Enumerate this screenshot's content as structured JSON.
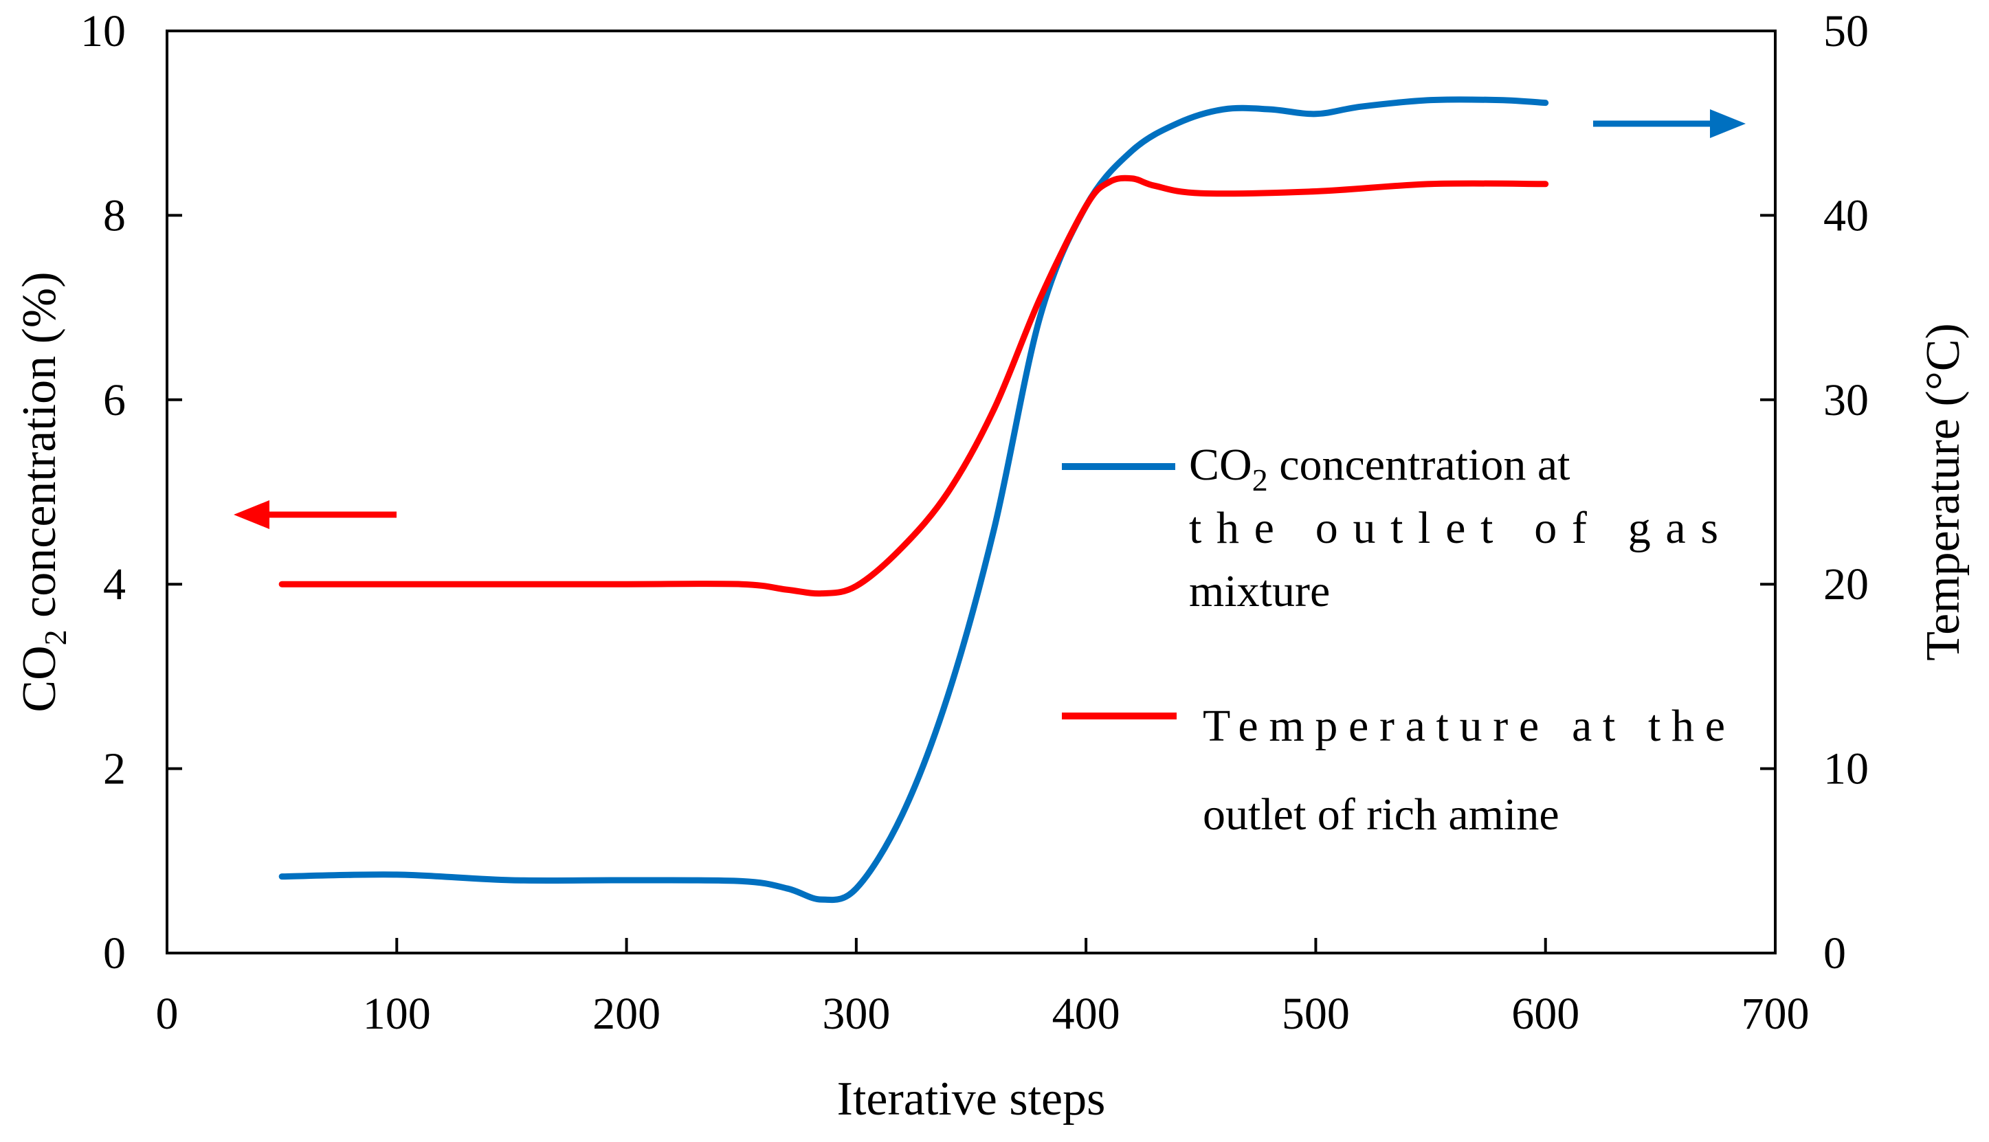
{
  "chart_data": {
    "type": "line",
    "title": "",
    "xlabel": "Iterative steps",
    "ylabel_left": {
      "prefix": "CO",
      "subscript": "2",
      "suffix": " concentration (%)"
    },
    "ylabel_right": "Temperature (°C)",
    "xlim": [
      0,
      700
    ],
    "ylim_left": [
      0,
      10
    ],
    "ylim_right": [
      0,
      50
    ],
    "x_ticks": [
      "0",
      "100",
      "200",
      "300",
      "400",
      "500",
      "600",
      "700"
    ],
    "y_left_ticks": [
      "0",
      "2",
      "4",
      "6",
      "8",
      "10"
    ],
    "y_right_ticks": [
      "0",
      "10",
      "20",
      "30",
      "40",
      "50"
    ],
    "grid": false,
    "series": [
      {
        "name": "CO2 concentration at the outlet of gas mixture",
        "axis": "left",
        "color": "#0070C0",
        "x": [
          50,
          100,
          150,
          200,
          250,
          270,
          285,
          300,
          320,
          340,
          360,
          380,
          400,
          420,
          440,
          460,
          480,
          500,
          520,
          550,
          580,
          600
        ],
        "y": [
          0.83,
          0.85,
          0.79,
          0.79,
          0.78,
          0.7,
          0.58,
          0.7,
          1.5,
          2.8,
          4.6,
          6.9,
          8.1,
          8.7,
          9.0,
          9.15,
          9.15,
          9.1,
          9.18,
          9.25,
          9.25,
          9.22
        ]
      },
      {
        "name": "Temperature at the outlet of rich amine",
        "axis": "right",
        "color": "#FF0000",
        "x": [
          50,
          100,
          150,
          200,
          250,
          270,
          285,
          300,
          320,
          340,
          360,
          380,
          400,
          410,
          420,
          430,
          450,
          500,
          550,
          600
        ],
        "y": [
          20.0,
          20.0,
          20.0,
          20.0,
          20.0,
          19.7,
          19.5,
          19.9,
          22.0,
          25.0,
          29.5,
          35.5,
          40.5,
          41.8,
          42.0,
          41.6,
          41.2,
          41.3,
          41.7,
          41.7
        ]
      }
    ],
    "legend": {
      "position": "right-middle",
      "co2": {
        "line1_prefix": "CO",
        "line1_sub": "2",
        "line1_suffix": " concentration at",
        "line2": "the outlet of gas",
        "line3": "mixture"
      },
      "temp": {
        "line1": "Temperature at the",
        "line2": "outlet of rich amine"
      }
    },
    "annotations": [
      {
        "type": "arrow",
        "direction": "left",
        "color": "#FF0000",
        "meaning": "temperature curve reads left axis? no - points to left axis"
      },
      {
        "type": "arrow",
        "direction": "right",
        "color": "#0070C0",
        "meaning": "points to right axis"
      }
    ]
  }
}
